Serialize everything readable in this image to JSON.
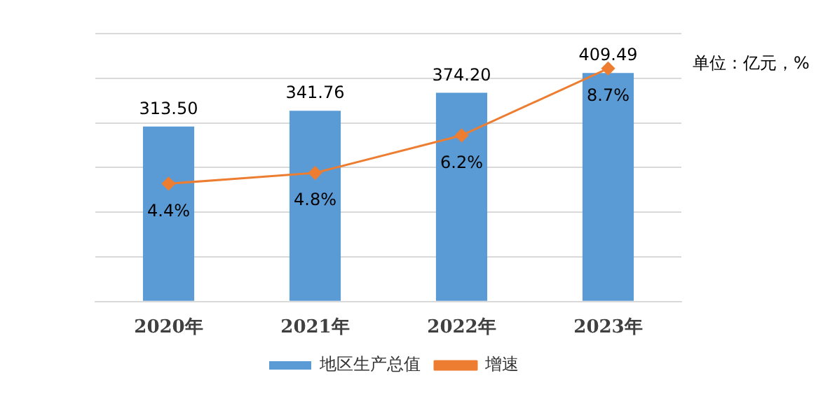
{
  "chart_data": {
    "type": "bar",
    "categories": [
      "2020年",
      "2021年",
      "2022年",
      "2023年"
    ],
    "series": [
      {
        "name": "地区生产总值",
        "color": "#5b9bd5",
        "values": [
          313.5,
          341.76,
          374.2,
          409.49
        ],
        "value_labels": [
          "313.50",
          "341.76",
          "374.20",
          "409.49"
        ]
      },
      {
        "name": "增速",
        "type": "line",
        "axis": "y2",
        "color": "#ed7d31",
        "values": [
          4.4,
          4.8,
          6.2,
          8.7
        ],
        "value_labels": [
          "4.4%",
          "4.8%",
          "6.2%",
          "8.7%"
        ]
      }
    ],
    "ylim": [
      0,
      480
    ],
    "yticks": [
      {
        "value": 0,
        "label": null
      },
      {
        "value": 80,
        "label": null
      },
      {
        "value": 160,
        "label": null
      },
      {
        "value": 240,
        "label": null
      },
      {
        "value": 320,
        "label": null
      },
      {
        "value": 400,
        "label": null
      },
      {
        "value": 480,
        "label": null
      }
    ],
    "y2lim": [
      0,
      10
    ],
    "tick_labels": "x",
    "grid": "y",
    "legend": "bottom",
    "marker": "diamond",
    "annotations": [
      "单位：亿元，%"
    ]
  }
}
